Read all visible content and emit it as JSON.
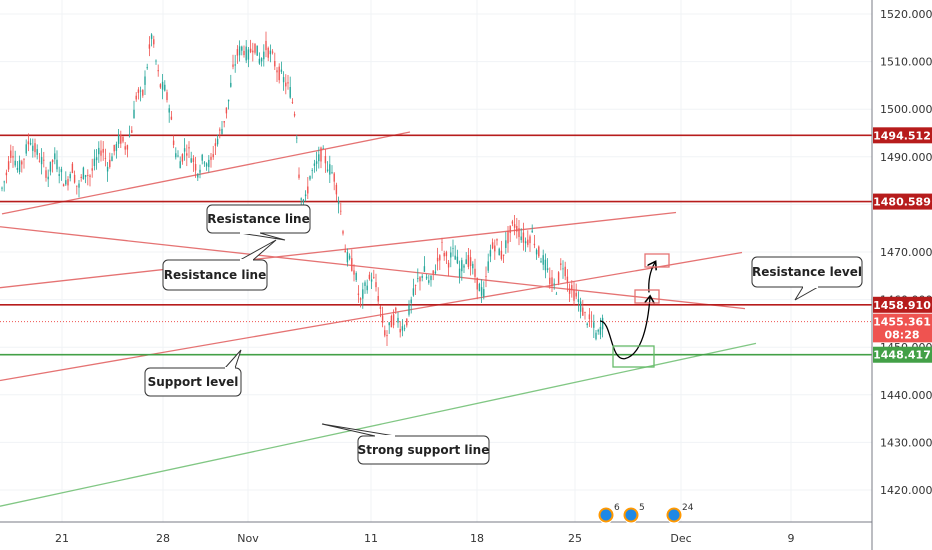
{
  "chart_data": {
    "type": "candlestick",
    "y_range": [
      1414,
      1522
    ],
    "y_ticks": [
      "1420.000",
      "1430.000",
      "1440.000",
      "1450.000",
      "1460.000",
      "1470.000",
      "1480.000",
      "1490.000",
      "1500.000",
      "1510.000",
      "1520.000"
    ],
    "x_ticks": [
      "21",
      "28",
      "Nov",
      "11",
      "18",
      "25",
      "Dec",
      "9"
    ],
    "grid": true,
    "price_tags": [
      {
        "label": "1494.512",
        "value": 1494.512,
        "color": "#b71c1c"
      },
      {
        "label": "1480.589",
        "value": 1480.589,
        "color": "#b71c1c"
      },
      {
        "label": "1458.910",
        "value": 1458.91,
        "color": "#b71c1c"
      },
      {
        "label": "1455.361",
        "value": 1455.361,
        "color": "#ef5350"
      },
      {
        "label": "08:28",
        "value": 1452.7,
        "color": "#ef5350"
      },
      {
        "label": "1448.417",
        "value": 1448.417,
        "color": "#43a047"
      }
    ],
    "horizontal_levels": [
      {
        "value": 1494.512,
        "color": "#b71c1c"
      },
      {
        "value": 1480.589,
        "color": "#b71c1c"
      },
      {
        "value": 1458.91,
        "color": "#b71c1c"
      },
      {
        "value": 1448.417,
        "color": "#43a047"
      }
    ],
    "current_price": 1455.361,
    "annotations": [
      {
        "text": "Resistance line"
      },
      {
        "text": "Resistance line"
      },
      {
        "text": "Resistance level"
      },
      {
        "text": "Support level"
      },
      {
        "text": "Strong support line"
      }
    ],
    "events": [
      {
        "count": "6"
      },
      {
        "count": "5"
      },
      {
        "count": "24"
      }
    ],
    "price_path": [
      [
        0,
        1482
      ],
      [
        6,
        1486
      ],
      [
        12,
        1492
      ],
      [
        18,
        1487
      ],
      [
        24,
        1490
      ],
      [
        30,
        1494
      ],
      [
        36,
        1491
      ],
      [
        42,
        1489
      ],
      [
        48,
        1486
      ],
      [
        54,
        1490
      ],
      [
        60,
        1487
      ],
      [
        66,
        1484
      ],
      [
        72,
        1488
      ],
      [
        78,
        1483
      ],
      [
        84,
        1487
      ],
      [
        90,
        1486
      ],
      [
        96,
        1489
      ],
      [
        102,
        1492
      ],
      [
        108,
        1488
      ],
      [
        114,
        1491
      ],
      [
        120,
        1494
      ],
      [
        126,
        1492
      ],
      [
        132,
        1496
      ],
      [
        137,
        1504
      ],
      [
        142,
        1502
      ],
      [
        147,
        1509
      ],
      [
        152,
        1516
      ],
      [
        156,
        1510
      ],
      [
        160,
        1505
      ],
      [
        165,
        1504
      ],
      [
        170,
        1500
      ],
      [
        175,
        1491
      ],
      [
        180,
        1489
      ],
      [
        186,
        1492
      ],
      [
        192,
        1490
      ],
      [
        198,
        1487
      ],
      [
        204,
        1490
      ],
      [
        210,
        1488
      ],
      [
        216,
        1493
      ],
      [
        222,
        1496
      ],
      [
        228,
        1501
      ],
      [
        233,
        1508
      ],
      [
        238,
        1512
      ],
      [
        243,
        1513
      ],
      [
        248,
        1511
      ],
      [
        254,
        1514
      ],
      [
        260,
        1510
      ],
      [
        266,
        1513
      ],
      [
        272,
        1511
      ],
      [
        278,
        1508
      ],
      [
        284,
        1506
      ],
      [
        290,
        1504
      ],
      [
        296,
        1498
      ],
      [
        300,
        1483
      ],
      [
        305,
        1480
      ],
      [
        310,
        1486
      ],
      [
        316,
        1488
      ],
      [
        322,
        1491
      ],
      [
        328,
        1488
      ],
      [
        334,
        1486
      ],
      [
        338,
        1482
      ],
      [
        342,
        1477
      ],
      [
        346,
        1469
      ],
      [
        350,
        1468
      ],
      [
        355,
        1466
      ],
      [
        360,
        1459
      ],
      [
        366,
        1463
      ],
      [
        372,
        1465
      ],
      [
        377,
        1462
      ],
      [
        382,
        1456
      ],
      [
        386,
        1452
      ],
      [
        391,
        1455
      ],
      [
        396,
        1457
      ],
      [
        401,
        1454
      ],
      [
        406,
        1455
      ],
      [
        412,
        1460
      ],
      [
        418,
        1464
      ],
      [
        424,
        1466
      ],
      [
        430,
        1463
      ],
      [
        436,
        1467
      ],
      [
        442,
        1471
      ],
      [
        448,
        1468
      ],
      [
        454,
        1470
      ],
      [
        460,
        1466
      ],
      [
        466,
        1469
      ],
      [
        472,
        1467
      ],
      [
        478,
        1463
      ],
      [
        484,
        1461
      ],
      [
        490,
        1470
      ],
      [
        496,
        1472
      ],
      [
        502,
        1469
      ],
      [
        508,
        1473
      ],
      [
        514,
        1476
      ],
      [
        520,
        1474
      ],
      [
        526,
        1472
      ],
      [
        532,
        1474
      ],
      [
        538,
        1470
      ],
      [
        544,
        1468
      ],
      [
        550,
        1464
      ],
      [
        556,
        1462
      ],
      [
        562,
        1468
      ],
      [
        566,
        1466
      ],
      [
        570,
        1462
      ],
      [
        575,
        1461
      ],
      [
        580,
        1459
      ],
      [
        586,
        1456
      ],
      [
        592,
        1455
      ],
      [
        597,
        1452
      ],
      [
        603,
        1455.4
      ]
    ]
  }
}
